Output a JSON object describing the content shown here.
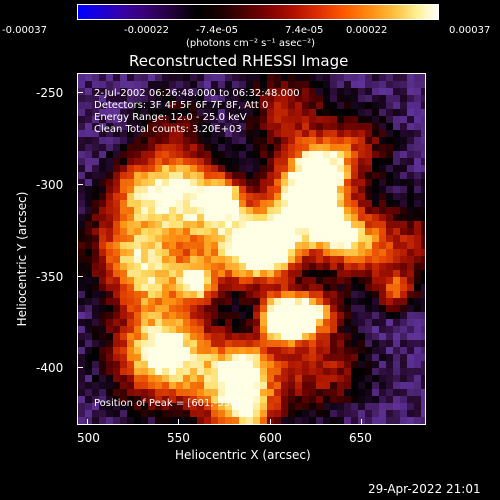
{
  "colorbar": {
    "ticks": [
      "-0.00037",
      "-0.00022",
      "-7.4e-05",
      "7.4e-05",
      "0.00022",
      "0.00037"
    ],
    "units": "(photons cm⁻² s⁻¹ asec⁻²)"
  },
  "title": "Reconstructed RHESSI Image",
  "info": {
    "time_range": "2-Jul-2002 06:26:48.000 to 06:32:48.000",
    "detectors": "Detectors: 3F 4F 5F 6F 7F 8F, Att 0",
    "energy_range": "Energy Range: 12.0 - 25.0 keV",
    "clean": "Clean     Total counts: 3.20E+03",
    "peak": "Position of Peak = [601,-336]"
  },
  "axes": {
    "xlabel": "Heliocentric X (arcsec)",
    "ylabel": "Heliocentric Y (arcsec)",
    "xticks": [
      "500",
      "550",
      "600",
      "650"
    ],
    "yticks": [
      "-250",
      "-300",
      "-350",
      "-400"
    ]
  },
  "footer": "29-Apr-2022 21:01"
}
